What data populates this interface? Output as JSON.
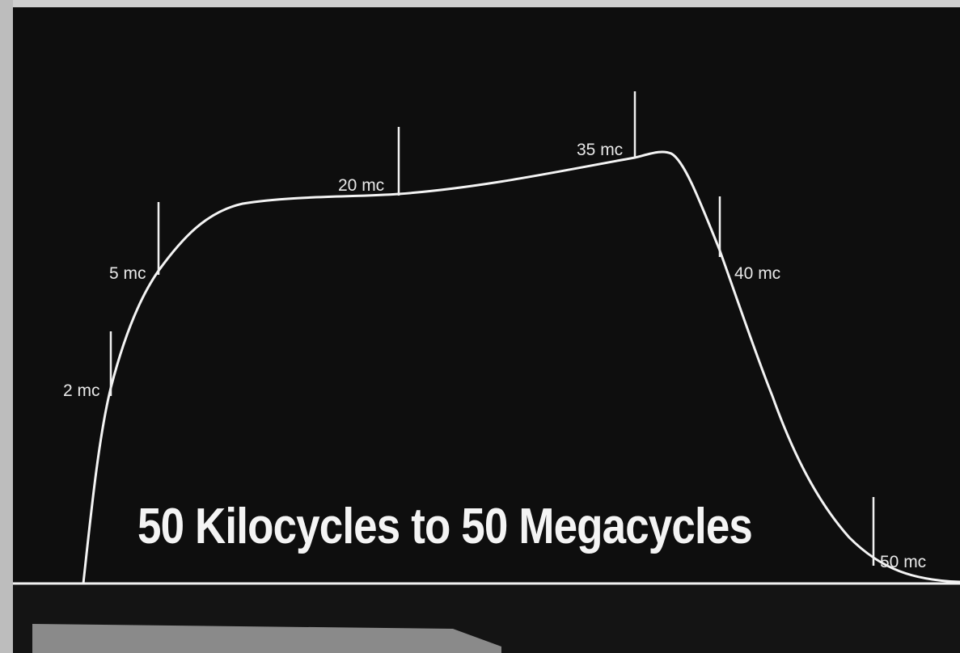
{
  "headline": "50 Kilocycles to 50 Megacycles",
  "markers": [
    "2 mc",
    "5 mc",
    "20 mc",
    "35 mc",
    "40 mc",
    "50 mc"
  ]
}
